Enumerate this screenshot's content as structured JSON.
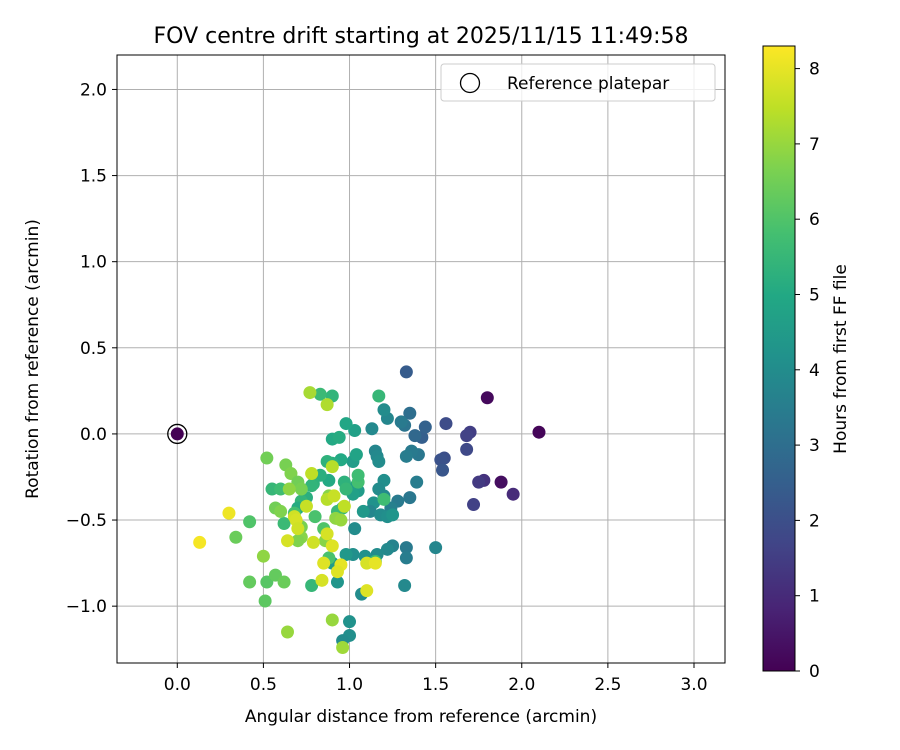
{
  "chart_data": {
    "type": "scatter",
    "title": "FOV centre drift starting at 2025/11/15 11:49:58",
    "xlabel": "Angular distance from reference (arcmin)",
    "ylabel": "Rotation from reference (arcmin)",
    "xlim": [
      -0.35,
      3.18
    ],
    "ylim": [
      -1.33,
      2.2
    ],
    "xticks": [
      0.0,
      0.5,
      1.0,
      1.5,
      2.0,
      2.5,
      3.0
    ],
    "xtick_labels": [
      "0.0",
      "0.5",
      "1.0",
      "1.5",
      "2.0",
      "2.5",
      "3.0"
    ],
    "yticks": [
      -1.0,
      -0.5,
      0.0,
      0.5,
      1.0,
      1.5,
      2.0
    ],
    "ytick_labels": [
      "−1.0",
      "−0.5",
      "0.0",
      "0.5",
      "1.0",
      "1.5",
      "2.0"
    ],
    "grid": true,
    "legend": {
      "position": "top-right",
      "entries": [
        "Reference platepar"
      ]
    },
    "reference_point": {
      "x": 0.0,
      "y": 0.0,
      "hours": 0.0
    },
    "colorbar": {
      "label": "Hours from first FF file",
      "colormap": "viridis",
      "min": 0,
      "max": 8.3,
      "ticks": [
        0,
        1,
        2,
        3,
        4,
        5,
        6,
        7,
        8
      ],
      "tick_labels": [
        "0",
        "1",
        "2",
        "3",
        "4",
        "5",
        "6",
        "7",
        "8"
      ]
    },
    "points": [
      {
        "x": 2.1,
        "y": 0.01,
        "h": 0.1
      },
      {
        "x": 1.8,
        "y": 0.21,
        "h": 0.2
      },
      {
        "x": 1.88,
        "y": -0.28,
        "h": 0.3
      },
      {
        "x": 1.95,
        "y": -0.35,
        "h": 1.0
      },
      {
        "x": 1.78,
        "y": -0.27,
        "h": 1.2
      },
      {
        "x": 1.75,
        "y": -0.28,
        "h": 1.4
      },
      {
        "x": 1.72,
        "y": -0.41,
        "h": 1.6
      },
      {
        "x": 1.7,
        "y": 0.01,
        "h": 1.5
      },
      {
        "x": 1.68,
        "y": -0.01,
        "h": 1.6
      },
      {
        "x": 1.68,
        "y": -0.09,
        "h": 1.8
      },
      {
        "x": 1.56,
        "y": 0.06,
        "h": 1.9
      },
      {
        "x": 1.55,
        "y": -0.14,
        "h": 2.0
      },
      {
        "x": 1.53,
        "y": -0.15,
        "h": 2.1
      },
      {
        "x": 1.54,
        "y": -0.21,
        "h": 2.2
      },
      {
        "x": 1.33,
        "y": 0.36,
        "h": 2.4
      },
      {
        "x": 1.42,
        "y": -0.02,
        "h": 2.5
      },
      {
        "x": 1.44,
        "y": 0.04,
        "h": 2.6
      },
      {
        "x": 1.38,
        "y": -0.01,
        "h": 2.8
      },
      {
        "x": 1.35,
        "y": 0.12,
        "h": 3.0
      },
      {
        "x": 1.32,
        "y": 0.05,
        "h": 3.2
      },
      {
        "x": 1.3,
        "y": 0.07,
        "h": 3.4
      },
      {
        "x": 1.4,
        "y": -0.12,
        "h": 3.3
      },
      {
        "x": 1.36,
        "y": -0.1,
        "h": 3.4
      },
      {
        "x": 1.33,
        "y": -0.13,
        "h": 3.5
      },
      {
        "x": 1.39,
        "y": -0.28,
        "h": 3.5
      },
      {
        "x": 1.35,
        "y": -0.37,
        "h": 3.3
      },
      {
        "x": 1.28,
        "y": -0.39,
        "h": 3.4
      },
      {
        "x": 1.24,
        "y": -0.43,
        "h": 3.6
      },
      {
        "x": 1.5,
        "y": -0.66,
        "h": 3.8
      },
      {
        "x": 1.33,
        "y": -0.66,
        "h": 3.4
      },
      {
        "x": 1.33,
        "y": -0.72,
        "h": 3.5
      },
      {
        "x": 1.32,
        "y": -0.88,
        "h": 3.9
      },
      {
        "x": 1.25,
        "y": -0.65,
        "h": 3.7
      },
      {
        "x": 1.22,
        "y": -0.67,
        "h": 3.9
      },
      {
        "x": 1.22,
        "y": 0.09,
        "h": 3.8
      },
      {
        "x": 1.2,
        "y": 0.14,
        "h": 4.0
      },
      {
        "x": 1.13,
        "y": 0.03,
        "h": 3.9
      },
      {
        "x": 1.15,
        "y": -0.1,
        "h": 3.8
      },
      {
        "x": 1.16,
        "y": -0.13,
        "h": 3.9
      },
      {
        "x": 1.17,
        "y": -0.16,
        "h": 4.0
      },
      {
        "x": 1.2,
        "y": -0.27,
        "h": 4.1
      },
      {
        "x": 1.17,
        "y": -0.32,
        "h": 4.0
      },
      {
        "x": 1.2,
        "y": -0.36,
        "h": 3.9
      },
      {
        "x": 1.14,
        "y": -0.4,
        "h": 4.2
      },
      {
        "x": 1.12,
        "y": -0.45,
        "h": 3.8
      },
      {
        "x": 1.18,
        "y": -0.47,
        "h": 4.0
      },
      {
        "x": 1.22,
        "y": -0.48,
        "h": 4.1
      },
      {
        "x": 1.25,
        "y": -0.47,
        "h": 4.3
      },
      {
        "x": 1.16,
        "y": -0.7,
        "h": 4.0
      },
      {
        "x": 1.09,
        "y": -0.71,
        "h": 4.2
      },
      {
        "x": 1.02,
        "y": -0.7,
        "h": 4.1
      },
      {
        "x": 1.03,
        "y": -0.55,
        "h": 4.0
      },
      {
        "x": 1.08,
        "y": -0.45,
        "h": 4.4
      },
      {
        "x": 1.07,
        "y": -0.93,
        "h": 4.0
      },
      {
        "x": 1.0,
        "y": -1.09,
        "h": 4.2
      },
      {
        "x": 1.0,
        "y": -1.17,
        "h": 4.1
      },
      {
        "x": 0.96,
        "y": -1.2,
        "h": 4.0
      },
      {
        "x": 0.93,
        "y": -0.86,
        "h": 4.3
      },
      {
        "x": 0.9,
        "y": -0.75,
        "h": 4.5
      },
      {
        "x": 0.98,
        "y": -0.7,
        "h": 4.4
      },
      {
        "x": 1.05,
        "y": -0.33,
        "h": 4.5
      },
      {
        "x": 1.04,
        "y": -0.3,
        "h": 4.6
      },
      {
        "x": 1.02,
        "y": -0.35,
        "h": 4.7
      },
      {
        "x": 1.02,
        "y": -0.16,
        "h": 4.6
      },
      {
        "x": 1.04,
        "y": -0.12,
        "h": 4.8
      },
      {
        "x": 1.03,
        "y": 0.02,
        "h": 4.7
      },
      {
        "x": 0.98,
        "y": 0.06,
        "h": 4.9
      },
      {
        "x": 0.9,
        "y": -0.03,
        "h": 5.0
      },
      {
        "x": 0.94,
        "y": -0.02,
        "h": 5.1
      },
      {
        "x": 0.95,
        "y": -0.15,
        "h": 5.0
      },
      {
        "x": 0.9,
        "y": -0.17,
        "h": 5.2
      },
      {
        "x": 0.87,
        "y": -0.16,
        "h": 5.3
      },
      {
        "x": 0.88,
        "y": -0.27,
        "h": 5.0
      },
      {
        "x": 0.83,
        "y": -0.24,
        "h": 5.2
      },
      {
        "x": 0.79,
        "y": -0.29,
        "h": 5.3
      },
      {
        "x": 0.78,
        "y": -0.3,
        "h": 5.4
      },
      {
        "x": 0.75,
        "y": -0.37,
        "h": 5.2
      },
      {
        "x": 0.72,
        "y": -0.39,
        "h": 5.4
      },
      {
        "x": 0.7,
        "y": -0.43,
        "h": 5.1
      },
      {
        "x": 0.97,
        "y": -0.28,
        "h": 5.3
      },
      {
        "x": 0.98,
        "y": -0.32,
        "h": 5.5
      },
      {
        "x": 0.96,
        "y": -0.43,
        "h": 5.4
      },
      {
        "x": 0.93,
        "y": -0.45,
        "h": 5.6
      },
      {
        "x": 0.9,
        "y": 0.22,
        "h": 5.4
      },
      {
        "x": 0.83,
        "y": 0.23,
        "h": 5.6
      },
      {
        "x": 1.17,
        "y": 0.22,
        "h": 5.5
      },
      {
        "x": 1.2,
        "y": -0.38,
        "h": 5.7
      },
      {
        "x": 1.15,
        "y": -0.74,
        "h": 5.6
      },
      {
        "x": 1.05,
        "y": -0.28,
        "h": 5.8
      },
      {
        "x": 1.05,
        "y": -0.24,
        "h": 5.7
      },
      {
        "x": 0.78,
        "y": -0.88,
        "h": 5.5
      },
      {
        "x": 0.55,
        "y": -0.32,
        "h": 5.5
      },
      {
        "x": 0.6,
        "y": -0.32,
        "h": 5.7
      },
      {
        "x": 0.62,
        "y": -0.52,
        "h": 5.6
      },
      {
        "x": 0.68,
        "y": -0.46,
        "h": 5.8
      },
      {
        "x": 0.8,
        "y": -0.48,
        "h": 5.9
      },
      {
        "x": 0.85,
        "y": -0.55,
        "h": 6.0
      },
      {
        "x": 0.88,
        "y": -0.72,
        "h": 5.9
      },
      {
        "x": 0.42,
        "y": -0.51,
        "h": 6.0
      },
      {
        "x": 0.52,
        "y": -0.86,
        "h": 6.1
      },
      {
        "x": 0.51,
        "y": -0.97,
        "h": 6.2
      },
      {
        "x": 0.57,
        "y": -0.82,
        "h": 6.3
      },
      {
        "x": 0.62,
        "y": -0.86,
        "h": 6.4
      },
      {
        "x": 0.42,
        "y": -0.86,
        "h": 6.3
      },
      {
        "x": 0.34,
        "y": -0.6,
        "h": 6.4
      },
      {
        "x": 0.52,
        "y": -0.14,
        "h": 6.5
      },
      {
        "x": 0.63,
        "y": -0.18,
        "h": 6.6
      },
      {
        "x": 0.66,
        "y": -0.23,
        "h": 6.7
      },
      {
        "x": 0.7,
        "y": -0.28,
        "h": 6.5
      },
      {
        "x": 0.72,
        "y": -0.32,
        "h": 6.6
      },
      {
        "x": 0.57,
        "y": -0.43,
        "h": 6.5
      },
      {
        "x": 0.6,
        "y": -0.45,
        "h": 6.7
      },
      {
        "x": 0.72,
        "y": -0.54,
        "h": 6.6
      },
      {
        "x": 0.72,
        "y": -0.6,
        "h": 6.8
      },
      {
        "x": 0.7,
        "y": -0.62,
        "h": 6.7
      },
      {
        "x": 0.65,
        "y": -0.32,
        "h": 6.9
      },
      {
        "x": 0.88,
        "y": -0.36,
        "h": 6.8
      },
      {
        "x": 0.92,
        "y": -0.49,
        "h": 6.9
      },
      {
        "x": 0.95,
        "y": -0.5,
        "h": 7.0
      },
      {
        "x": 0.86,
        "y": -0.62,
        "h": 6.8
      },
      {
        "x": 0.5,
        "y": -0.71,
        "h": 6.9
      },
      {
        "x": 0.64,
        "y": -1.15,
        "h": 7.0
      },
      {
        "x": 0.9,
        "y": -1.08,
        "h": 7.0
      },
      {
        "x": 0.96,
        "y": -1.24,
        "h": 7.1
      },
      {
        "x": 0.77,
        "y": 0.24,
        "h": 7.2
      },
      {
        "x": 0.87,
        "y": 0.17,
        "h": 7.3
      },
      {
        "x": 0.9,
        "y": -0.19,
        "h": 7.4
      },
      {
        "x": 0.78,
        "y": -0.23,
        "h": 7.5
      },
      {
        "x": 0.87,
        "y": -0.38,
        "h": 7.4
      },
      {
        "x": 0.91,
        "y": -0.36,
        "h": 7.6
      },
      {
        "x": 0.97,
        "y": -0.42,
        "h": 7.5
      },
      {
        "x": 0.75,
        "y": -0.42,
        "h": 7.6
      },
      {
        "x": 0.68,
        "y": -0.48,
        "h": 7.7
      },
      {
        "x": 0.69,
        "y": -0.5,
        "h": 7.8
      },
      {
        "x": 0.7,
        "y": -0.55,
        "h": 7.7
      },
      {
        "x": 0.87,
        "y": -0.58,
        "h": 7.8
      },
      {
        "x": 0.9,
        "y": -0.65,
        "h": 7.9
      },
      {
        "x": 0.79,
        "y": -0.63,
        "h": 7.7
      },
      {
        "x": 0.64,
        "y": -0.62,
        "h": 7.8
      },
      {
        "x": 0.85,
        "y": -0.75,
        "h": 7.9
      },
      {
        "x": 0.95,
        "y": -0.76,
        "h": 8.0
      },
      {
        "x": 0.93,
        "y": -0.8,
        "h": 7.9
      },
      {
        "x": 0.84,
        "y": -0.85,
        "h": 7.8
      },
      {
        "x": 1.1,
        "y": -0.75,
        "h": 7.8
      },
      {
        "x": 1.15,
        "y": -0.75,
        "h": 8.0
      },
      {
        "x": 1.1,
        "y": -0.91,
        "h": 7.9
      },
      {
        "x": 0.3,
        "y": -0.46,
        "h": 8.1
      },
      {
        "x": 0.13,
        "y": -0.63,
        "h": 8.2
      }
    ]
  }
}
